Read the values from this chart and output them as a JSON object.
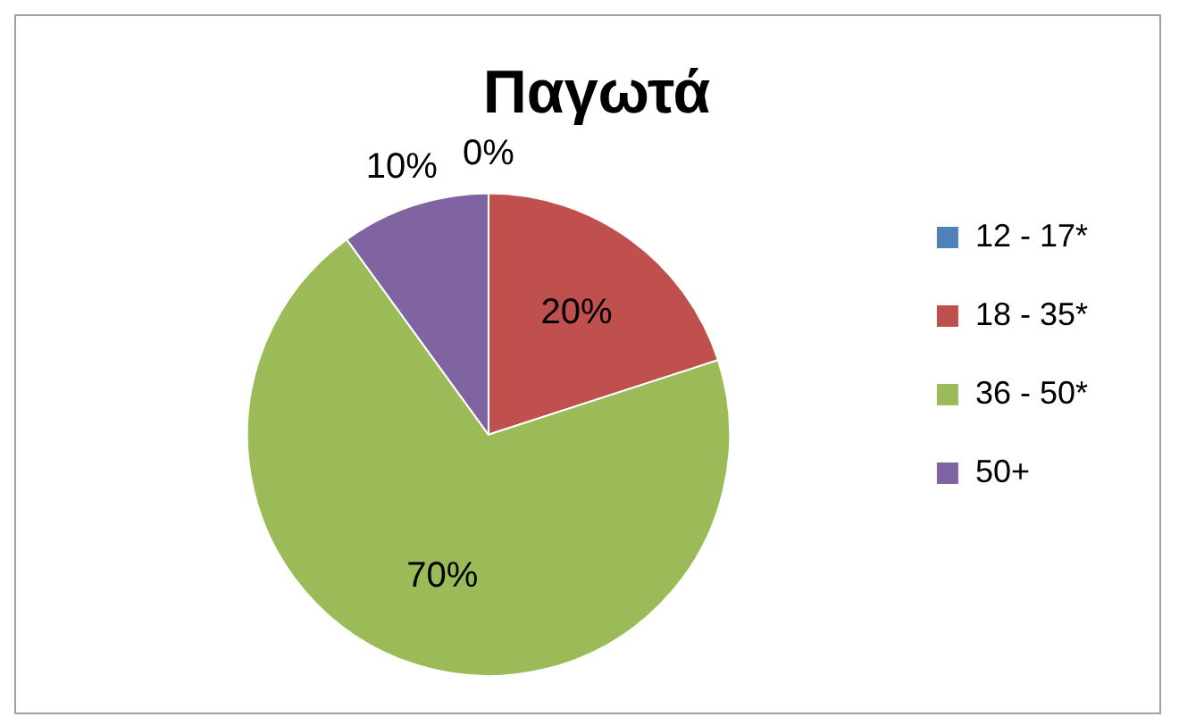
{
  "chart_data": {
    "type": "pie",
    "title": "Παγωτά",
    "categories": [
      "12 - 17*",
      "18 - 35*",
      "36 - 50*",
      "50+"
    ],
    "values": [
      0,
      20,
      70,
      10
    ],
    "value_labels": [
      "0%",
      "20%",
      "70%",
      "10%"
    ],
    "colors": [
      "#4f81bd",
      "#c0504d",
      "#9bbb59",
      "#8064a2"
    ],
    "legend": "right"
  }
}
